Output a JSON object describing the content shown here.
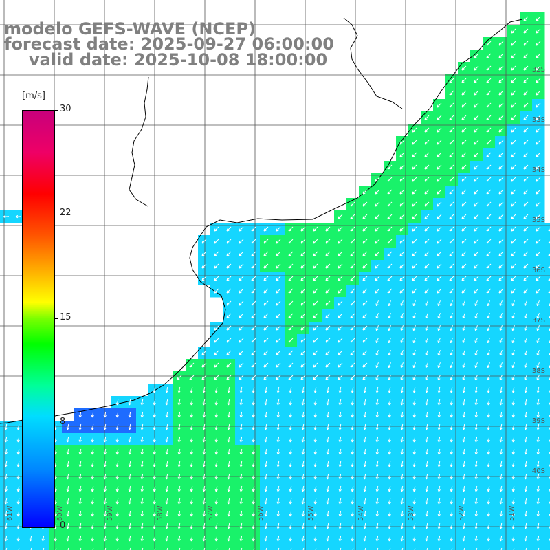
{
  "title": {
    "line1": "modelo GEFS-WAVE (NCEP)",
    "line2": "forecast date: 2025-09-27 06:00:00",
    "line3": "valid date: 2025-10-08 18:00:00"
  },
  "colorbar": {
    "unit": "[m/s]",
    "ticks": [
      "30",
      "22",
      "15",
      "8",
      "0"
    ],
    "range": [
      0,
      30
    ],
    "colors": [
      "#0000ff",
      "#00ddff",
      "#00ff00",
      "#ffff00",
      "#ff0000",
      "#c8007c"
    ]
  },
  "axes": {
    "lat_labels": [
      "32S",
      "33S",
      "34S",
      "35S",
      "36S",
      "37S",
      "38S",
      "39S",
      "40S"
    ],
    "lon_labels": [
      "61W",
      "60W",
      "59W",
      "58W",
      "57W",
      "56W",
      "55W",
      "54W",
      "53W",
      "52W",
      "51W"
    ]
  },
  "field": {
    "variable": "wind speed",
    "dominant_direction": "southwest-bound",
    "colors": {
      "blue": "#1e6cff",
      "cyan": "#15d6ff",
      "green": "#19f26a",
      "yellow_green": "#a6f210"
    }
  }
}
